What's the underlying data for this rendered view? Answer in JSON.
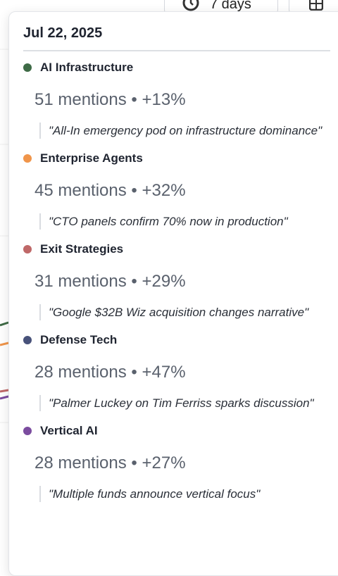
{
  "toolbar": {
    "range": "7 days"
  },
  "tooltip": {
    "date": "Jul 22, 2025",
    "items": [
      {
        "name": "AI Infrastructure",
        "color": "#3e6b46",
        "stats": "51 mentions • +13%",
        "quote": "\"All-In emergency pod on infrastructure dominance\""
      },
      {
        "name": "Enterprise Agents",
        "color": "#f0954a",
        "stats": "45 mentions • +32%",
        "quote": "\"CTO panels confirm 70% now in production\""
      },
      {
        "name": "Exit Strategies",
        "color": "#bf6868",
        "stats": "31 mentions • +29%",
        "quote": "\"Google $32B Wiz acquisition changes narrative\""
      },
      {
        "name": "Defense Tech",
        "color": "#48527a",
        "stats": "28 mentions • +47%",
        "quote": "\"Palmer Luckey on Tim Ferriss sparks discussion\""
      },
      {
        "name": "Vertical AI",
        "color": "#7b4c9f",
        "stats": "28 mentions • +27%",
        "quote": "\"Multiple funds announce vertical focus\""
      }
    ]
  }
}
